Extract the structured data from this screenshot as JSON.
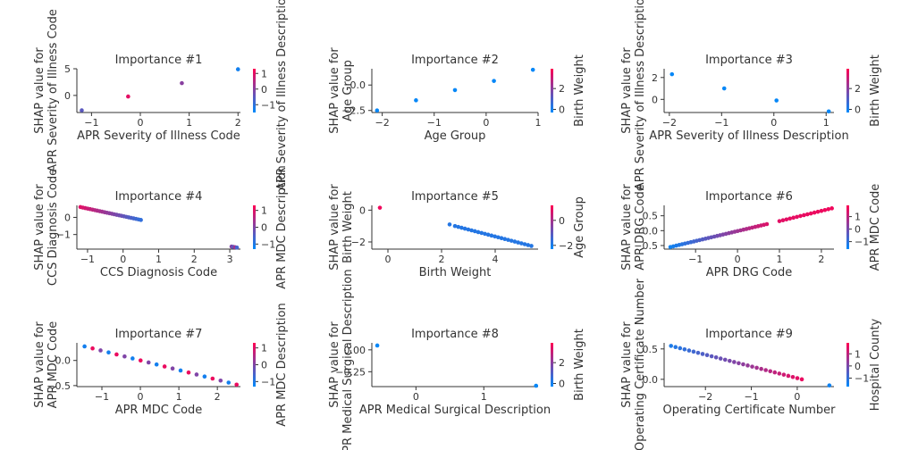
{
  "figure": {
    "colors": {
      "low": "#008afb",
      "high": "#ff0052",
      "axis": "#333333"
    }
  },
  "chart_data": [
    {
      "type": "scatter",
      "title": "Importance #1",
      "xlabel": "APR Severity of Illness Code",
      "ylabel": [
        "SHAP value for",
        "APR Severity of Illness Code"
      ],
      "color_label": "APR Severity of Illness Description",
      "xlim": [
        -1.3,
        2.05
      ],
      "ylim": [
        -3.2,
        5.0
      ],
      "xticks": [
        -1,
        0,
        1,
        2
      ],
      "yticks": [
        0,
        5
      ],
      "ytick_labels": [
        "0",
        "5"
      ],
      "cticks": [
        -1,
        0,
        1
      ],
      "clim": [
        -1.5,
        1.3
      ],
      "points": [
        {
          "x": -1.2,
          "y": -2.8,
          "c": -0.5
        },
        {
          "x": -0.25,
          "y": -0.2,
          "c": 1.0
        },
        {
          "x": 0.85,
          "y": 2.3,
          "c": 0.0
        },
        {
          "x": 2.0,
          "y": 4.9,
          "c": -1.3
        }
      ]
    },
    {
      "type": "scatter",
      "title": "Importance #2",
      "xlabel": "Age Group",
      "ylabel": [
        "SHAP value for",
        "Age Group"
      ],
      "color_label": "Birth Weight",
      "xlim": [
        -2.2,
        1.0
      ],
      "ylim": [
        -2.7,
        1.6
      ],
      "xticks": [
        -2,
        -1,
        0,
        1
      ],
      "yticks": [
        -2.5,
        0
      ],
      "ytick_labels": [
        "−2.5",
        "0.0"
      ],
      "cticks": [
        0,
        2
      ],
      "clim": [
        -0.3,
        3.9
      ],
      "points": [
        {
          "x": -2.1,
          "y": -2.5,
          "c": -0.2
        },
        {
          "x": -1.35,
          "y": -1.5,
          "c": -0.2
        },
        {
          "x": -0.6,
          "y": -0.5,
          "c": -0.2
        },
        {
          "x": 0.15,
          "y": 0.4,
          "c": -0.2
        },
        {
          "x": 0.9,
          "y": 1.5,
          "c": -0.2
        }
      ]
    },
    {
      "type": "scatter",
      "title": "Importance #3",
      "xlabel": "APR Severity of Illness Description",
      "ylabel": [
        "SHAP value for",
        "APR Severity of Illness Description"
      ],
      "color_label": "Birth Weight",
      "xlim": [
        -2.1,
        1.15
      ],
      "ylim": [
        -1.2,
        2.8
      ],
      "xticks": [
        -2,
        -1,
        0,
        1
      ],
      "yticks": [
        0,
        2
      ],
      "ytick_labels": [
        "0",
        "2"
      ],
      "cticks": [
        0,
        2
      ],
      "clim": [
        -0.3,
        3.9
      ],
      "points": [
        {
          "x": -1.95,
          "y": 2.3,
          "c": -0.2
        },
        {
          "x": -0.95,
          "y": 1.0,
          "c": -0.2
        },
        {
          "x": 0.05,
          "y": -0.1,
          "c": -0.2
        },
        {
          "x": 1.05,
          "y": -1.1,
          "c": -0.2
        }
      ]
    },
    {
      "type": "scatter",
      "title": "Importance #4",
      "xlabel": "CCS Diagnosis Code",
      "ylabel": [
        "SHAP value for",
        "CCS Diagnosis Code"
      ],
      "color_label": "APR MDC Description",
      "xlim": [
        -1.3,
        3.3
      ],
      "ylim": [
        -1.85,
        0.7
      ],
      "xticks": [
        -1,
        0,
        1,
        2,
        3
      ],
      "yticks": [
        -1,
        0
      ],
      "ytick_labels": [
        "−1",
        "0"
      ],
      "cticks": [
        -1,
        0,
        1
      ],
      "clim": [
        -1.3,
        1.3
      ],
      "seg": {
        "x0": -1.2,
        "y0": 0.6,
        "x1": 0.5,
        "y1": -0.15,
        "n": 26,
        "c0": 1.0,
        "c1": -0.8
      },
      "points": [
        {
          "x": 3.05,
          "y": -1.7,
          "c": 0.0
        },
        {
          "x": 3.1,
          "y": -1.72,
          "c": -0.3
        },
        {
          "x": 3.15,
          "y": -1.74,
          "c": 0.4
        },
        {
          "x": 3.2,
          "y": -1.76,
          "c": -0.6
        }
      ]
    },
    {
      "type": "scatter",
      "title": "Importance #5",
      "xlabel": "Birth Weight",
      "ylabel": [
        "SHAP value for",
        "Birth Weight"
      ],
      "color_label": "Age Group",
      "xlim": [
        -0.6,
        5.6
      ],
      "ylim": [
        -2.45,
        0.3
      ],
      "xticks": [
        0,
        2,
        4
      ],
      "yticks": [
        -2,
        0
      ],
      "ytick_labels": [
        "−2",
        "0"
      ],
      "cticks": [
        -2,
        0
      ],
      "clim": [
        -2.3,
        1.2
      ],
      "seg": {
        "x0": 2.5,
        "y0": -1.0,
        "x1": 5.35,
        "y1": -2.25,
        "n": 24,
        "c0": -1.8,
        "c1": -1.8
      },
      "points": [
        {
          "x": -0.3,
          "y": 0.15,
          "c": 1.0
        },
        {
          "x": 2.3,
          "y": -0.9,
          "c": -1.8
        }
      ]
    },
    {
      "type": "scatter",
      "title": "Importance #6",
      "xlabel": "APR DRG Code",
      "ylabel": [
        "SHAP value for",
        "APR DRG Code"
      ],
      "color_label": "APR MDC Code",
      "xlim": [
        -1.75,
        2.3
      ],
      "ylim": [
        -0.62,
        0.85
      ],
      "xticks": [
        -1,
        0,
        1,
        2
      ],
      "yticks": [
        -0.5,
        0,
        0.5
      ],
      "ytick_labels": [
        "−0.5",
        "0.0",
        "0.5"
      ],
      "cticks": [
        -1,
        0,
        1
      ],
      "clim": [
        -1.6,
        1.9
      ],
      "seg": {
        "x0": -1.6,
        "y0": -0.55,
        "x1": 0.7,
        "y1": 0.22,
        "n": 34,
        "c0": -1.4,
        "c1": 1.4
      },
      "seg2": {
        "x0": 1.0,
        "y0": 0.32,
        "x1": 2.25,
        "y1": 0.75,
        "n": 16,
        "c0": 1.5,
        "c1": 1.7
      }
    },
    {
      "type": "scatter",
      "title": "Importance #7",
      "xlabel": "APR MDC Code",
      "ylabel": [
        "SHAP value for",
        "APR MDC Code"
      ],
      "color_label": "APR MDC Description",
      "xlim": [
        -1.65,
        2.6
      ],
      "ylim": [
        -0.52,
        0.35
      ],
      "xticks": [
        -1,
        0,
        1,
        2
      ],
      "yticks": [
        -0.5,
        0
      ],
      "ytick_labels": [
        "−0.5",
        "0.0"
      ],
      "cticks": [
        -1,
        0,
        1
      ],
      "clim": [
        -1.3,
        1.3
      ],
      "seg": {
        "x0": -1.45,
        "y0": 0.28,
        "x1": 2.5,
        "y1": -0.48,
        "n": 20,
        "c0": 1.0,
        "c1": 1.0,
        "mix": true
      }
    },
    {
      "type": "scatter",
      "title": "Importance #8",
      "xlabel": "APR Medical Surgical Description",
      "ylabel": [
        "SHAP value for",
        "APR Medical Surgical Description"
      ],
      "color_label": "Birth Weight",
      "xlim": [
        -0.65,
        1.8
      ],
      "ylim": [
        -0.42,
        0.08
      ],
      "xticks": [
        0,
        1
      ],
      "yticks": [
        -0.25,
        0
      ],
      "ytick_labels": [
        "−0.25",
        "0.00"
      ],
      "cticks": [
        0,
        2
      ],
      "clim": [
        -0.3,
        3.9
      ],
      "points": [
        {
          "x": -0.57,
          "y": 0.05,
          "c": -0.2
        },
        {
          "x": 1.77,
          "y": -0.41,
          "c": -0.2
        }
      ]
    },
    {
      "type": "scatter",
      "title": "Importance #9",
      "xlabel": "Operating Certificate Number",
      "ylabel": [
        "SHAP value for",
        "Operating Certificate Number"
      ],
      "color_label": "Hospital County",
      "xlim": [
        -2.9,
        0.8
      ],
      "ylim": [
        -0.12,
        0.6
      ],
      "xticks": [
        -2,
        -1,
        0
      ],
      "yticks": [
        0,
        0.5
      ],
      "ytick_labels": [
        "0.0",
        "0.5"
      ],
      "cticks": [
        -1,
        0,
        1
      ],
      "clim": [
        -1.7,
        1.9
      ],
      "seg": {
        "x0": -2.75,
        "y0": 0.55,
        "x1": 0.1,
        "y1": 0.0,
        "n": 30,
        "c0": -1.3,
        "c1": 1.6
      },
      "points": [
        {
          "x": 0.7,
          "y": -0.1,
          "c": -1.5
        }
      ]
    }
  ]
}
